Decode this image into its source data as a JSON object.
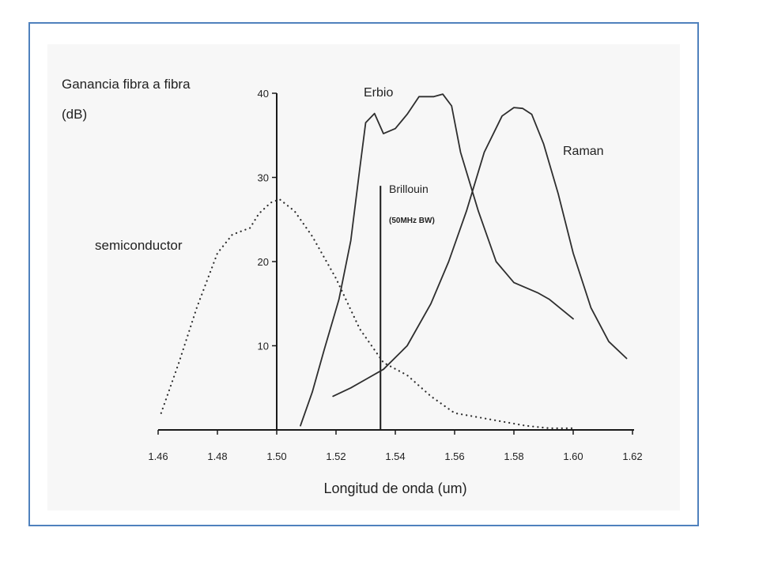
{
  "chart_data": {
    "type": "line",
    "ylabel_line1": "Ganancia fibra a fibra",
    "ylabel_line2": "(dB)",
    "xlabel": "Longitud de onda (um)",
    "xlim": [
      1.46,
      1.62
    ],
    "ylim": [
      0,
      40
    ],
    "x_ticks": [
      "1.46",
      "1.48",
      "1.50",
      "1.52",
      "1.54",
      "1.56",
      "1.58",
      "1.60",
      "1.62"
    ],
    "y_ticks": [
      "10",
      "20",
      "30",
      "40"
    ],
    "grid": false,
    "colors": {
      "curve": "#2e2e2e",
      "axis": "#1a1a1a",
      "frame": "#4f81bd"
    },
    "series": [
      {
        "name": "Erbio",
        "style": "solid",
        "points": [
          [
            1.508,
            0.5
          ],
          [
            1.512,
            4.5
          ],
          [
            1.516,
            9.5
          ],
          [
            1.521,
            15.5
          ],
          [
            1.525,
            22.5
          ],
          [
            1.528,
            31
          ],
          [
            1.53,
            36.5
          ],
          [
            1.533,
            37.6
          ],
          [
            1.536,
            35.2
          ],
          [
            1.54,
            35.8
          ],
          [
            1.544,
            37.5
          ],
          [
            1.548,
            39.6
          ],
          [
            1.553,
            39.6
          ],
          [
            1.556,
            39.9
          ],
          [
            1.559,
            38.5
          ],
          [
            1.562,
            33
          ],
          [
            1.568,
            26
          ],
          [
            1.574,
            20
          ],
          [
            1.58,
            17.5
          ],
          [
            1.588,
            16.3
          ],
          [
            1.592,
            15.5
          ],
          [
            1.6,
            13.2
          ]
        ]
      },
      {
        "name": "Raman",
        "style": "solid",
        "points": [
          [
            1.519,
            4
          ],
          [
            1.525,
            5
          ],
          [
            1.53,
            6
          ],
          [
            1.536,
            7.2
          ],
          [
            1.544,
            10
          ],
          [
            1.552,
            15
          ],
          [
            1.558,
            20
          ],
          [
            1.564,
            26
          ],
          [
            1.57,
            33
          ],
          [
            1.576,
            37.3
          ],
          [
            1.58,
            38.3
          ],
          [
            1.583,
            38.2
          ],
          [
            1.586,
            37.5
          ],
          [
            1.59,
            34
          ],
          [
            1.595,
            28
          ],
          [
            1.6,
            21
          ],
          [
            1.606,
            14.5
          ],
          [
            1.612,
            10.5
          ],
          [
            1.618,
            8.5
          ]
        ]
      },
      {
        "name": "semiconductor",
        "style": "dotted",
        "points": [
          [
            1.461,
            2
          ],
          [
            1.467,
            8
          ],
          [
            1.473,
            14.5
          ],
          [
            1.48,
            21
          ],
          [
            1.485,
            23.2
          ],
          [
            1.491,
            24
          ],
          [
            1.494,
            25.7
          ],
          [
            1.498,
            27
          ],
          [
            1.501,
            27.4
          ],
          [
            1.506,
            26
          ],
          [
            1.512,
            23
          ],
          [
            1.52,
            18
          ],
          [
            1.528,
            12
          ],
          [
            1.536,
            8
          ],
          [
            1.544,
            6.5
          ],
          [
            1.552,
            4
          ],
          [
            1.56,
            2
          ],
          [
            1.568,
            1.5
          ],
          [
            1.576,
            1
          ],
          [
            1.584,
            0.5
          ],
          [
            1.592,
            0.2
          ],
          [
            1.6,
            0.2
          ]
        ]
      }
    ],
    "vertical_lines": [
      {
        "name": "semiconductor-marker",
        "x": 1.5,
        "y_top": 40
      },
      {
        "name": "Brillouin",
        "x": 1.535,
        "y_top": 29
      }
    ],
    "annotations": {
      "erbio": "Erbio",
      "raman": "Raman",
      "semiconductor": "semiconductor",
      "brillouin": "Brillouin",
      "brillouin_sub": "(50MHz BW)"
    }
  }
}
